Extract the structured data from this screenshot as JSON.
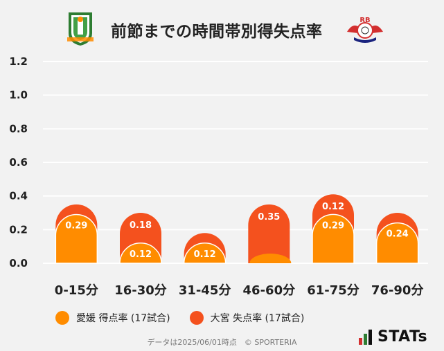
{
  "title": "前節までの時間帯別得失点率",
  "logos": {
    "left": "ehime-crest-icon",
    "right": "rb-omiya-crest-icon",
    "right_text": "RB"
  },
  "colors": {
    "ehime": "#ff8c00",
    "omiya": "#f4511e",
    "grid": "#ffffff"
  },
  "chart_data": {
    "type": "bar",
    "categories": [
      "0-15分",
      "16-30分",
      "31-45分",
      "46-60分",
      "61-75分",
      "76-90分"
    ],
    "series": [
      {
        "name": "愛媛 得点率 (17試合)",
        "values": [
          0.29,
          0.12,
          0.12,
          0.0,
          0.29,
          0.24
        ]
      },
      {
        "name": "大宮 失点率 (17試合)",
        "values": [
          0.06,
          0.18,
          0.06,
          0.35,
          0.12,
          0.06
        ]
      }
    ],
    "value_labels": [
      [
        "0.29",
        "0.12",
        "0.12",
        "",
        "0.29",
        "0.24"
      ],
      [
        "",
        "0.18",
        "",
        "0.35",
        "0.12",
        ""
      ]
    ],
    "yticks": [
      "0.0",
      "0.2",
      "0.4",
      "0.6",
      "0.8",
      "1.0",
      "1.2"
    ],
    "ylim": [
      0,
      1.2
    ],
    "stacked": true,
    "grid": true
  },
  "legend": [
    {
      "label": "愛媛 得点率 (17試合)",
      "color": "#ff8c00"
    },
    {
      "label": "大宮 失点率 (17試合)",
      "color": "#f4511e"
    }
  ],
  "footer": "データは2025/06/01時点　© SPORTERIA",
  "brand": "STATs"
}
